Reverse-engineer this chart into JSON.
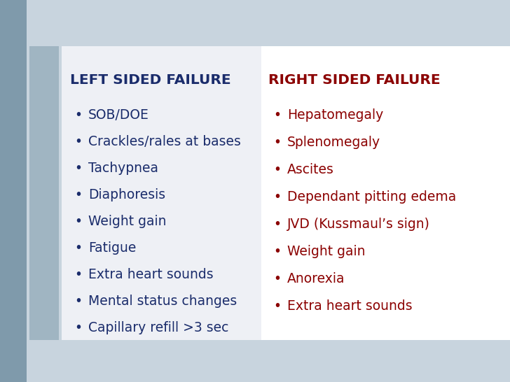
{
  "bg_color": "#c8d4de",
  "white_bg": "#ffffff",
  "panel_color": "#eef0f5",
  "left_title": "LEFT SIDED FAILURE",
  "right_title": "RIGHT SIDED FAILURE",
  "left_title_color": "#1a2c6b",
  "right_title_color": "#8b0000",
  "left_items_color": "#1a2c6b",
  "right_items_color": "#8b0000",
  "left_items": [
    "SOB/DOE",
    "Crackles/rales at bases",
    "Tachypnea",
    "Diaphoresis",
    "Weight gain",
    "Fatigue",
    "Extra heart sounds",
    "Mental status changes",
    "Capillary refill >3 sec"
  ],
  "right_items": [
    "Hepatomegaly",
    "Splenomegaly",
    "Ascites",
    "Dependant pitting edema",
    "JVD (Kussmaul’s sign)",
    "Weight gain",
    "Anorexia",
    "Extra heart sounds"
  ],
  "sidebar1_color": "#7f9aab",
  "sidebar2_color": "#a0b5c2",
  "title_fontsize": 14.5,
  "item_fontsize": 13.5
}
